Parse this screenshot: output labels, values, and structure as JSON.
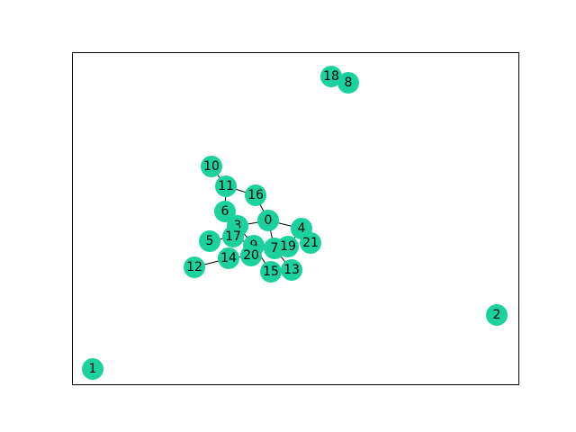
{
  "nodes": [
    {
      "label": "0"
    },
    {
      "label": "1"
    },
    {
      "label": "2"
    },
    {
      "label": "3"
    },
    {
      "label": "4"
    },
    {
      "label": "5"
    },
    {
      "label": "6"
    },
    {
      "label": "7"
    },
    {
      "label": "8"
    },
    {
      "label": "9"
    },
    {
      "label": "10"
    },
    {
      "label": "11"
    },
    {
      "label": "12"
    },
    {
      "label": "13"
    },
    {
      "label": "14"
    },
    {
      "label": "15"
    },
    {
      "label": "16"
    },
    {
      "label": "17"
    },
    {
      "label": "18"
    },
    {
      "label": "19"
    },
    {
      "label": "20"
    },
    {
      "label": "21"
    }
  ],
  "edges": [
    [
      10,
      11
    ],
    [
      11,
      16
    ],
    [
      11,
      6
    ],
    [
      16,
      0
    ],
    [
      0,
      4
    ],
    [
      0,
      3
    ],
    [
      0,
      7
    ],
    [
      4,
      21
    ],
    [
      4,
      19
    ],
    [
      3,
      17
    ],
    [
      5,
      17
    ],
    [
      17,
      9
    ],
    [
      9,
      20
    ],
    [
      14,
      20
    ],
    [
      12,
      14
    ],
    [
      9,
      15
    ],
    [
      7,
      13
    ],
    [
      3,
      9
    ]
  ]
}
